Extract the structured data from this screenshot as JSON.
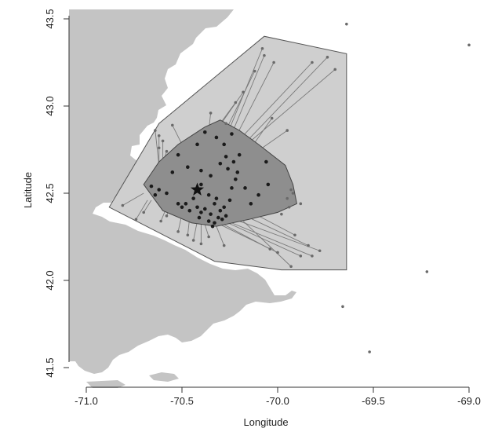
{
  "chart_data": {
    "type": "scatter",
    "title": "",
    "xlabel": "Longitude",
    "ylabel": "Latitude",
    "xlim": [
      -71.1,
      -68.9
    ],
    "ylim": [
      41.45,
      43.58
    ],
    "xticks": [
      -71.0,
      -70.5,
      -70.0,
      -69.5,
      -69.0
    ],
    "yticks": [
      41.5,
      42.0,
      42.5,
      43.0,
      43.5
    ],
    "xtick_labels": [
      "-71.0",
      "-70.5",
      "-70.0",
      "-69.5",
      "-69.0"
    ],
    "ytick_labels": [
      "41.5",
      "42.0",
      "42.5",
      "43.0",
      "43.5"
    ],
    "grid": false,
    "colors": {
      "land": "#c4c4c4",
      "outer_hull": "#cfcfcf",
      "inner_hull": "#8e8e8e",
      "outer_points": "#6a6a6a",
      "inner_points": "#1a1a1a",
      "lines": "#7a7a7a"
    },
    "center": {
      "x": -70.42,
      "y": 42.52,
      "marker": "star-icon"
    },
    "inner_hull": [
      [
        -70.7,
        42.55
      ],
      [
        -70.62,
        42.68
      ],
      [
        -70.52,
        42.78
      ],
      [
        -70.38,
        42.88
      ],
      [
        -70.3,
        42.92
      ],
      [
        -70.2,
        42.86
      ],
      [
        -70.1,
        42.78
      ],
      [
        -69.96,
        42.66
      ],
      [
        -69.92,
        42.55
      ],
      [
        -69.9,
        42.44
      ],
      [
        -70.0,
        42.39
      ],
      [
        -70.15,
        42.35
      ],
      [
        -70.32,
        42.31
      ],
      [
        -70.45,
        42.33
      ],
      [
        -70.6,
        42.4
      ]
    ],
    "outer_hull": [
      [
        -70.88,
        42.42
      ],
      [
        -70.62,
        42.9
      ],
      [
        -70.07,
        43.4
      ],
      [
        -69.64,
        43.3
      ],
      [
        -69.64,
        42.06
      ],
      [
        -69.98,
        42.06
      ],
      [
        -70.33,
        42.11
      ]
    ],
    "inner_points": [
      [
        -70.4,
        42.55
      ],
      [
        -70.36,
        42.49
      ],
      [
        -70.33,
        42.44
      ],
      [
        -70.38,
        42.41
      ],
      [
        -70.42,
        42.42
      ],
      [
        -70.46,
        42.4
      ],
      [
        -70.5,
        42.42
      ],
      [
        -70.52,
        42.44
      ],
      [
        -70.48,
        42.44
      ],
      [
        -70.44,
        42.47
      ],
      [
        -70.35,
        42.38
      ],
      [
        -70.31,
        42.36
      ],
      [
        -70.29,
        42.35
      ],
      [
        -70.33,
        42.33
      ],
      [
        -70.36,
        42.34
      ],
      [
        -70.3,
        42.4
      ],
      [
        -70.28,
        42.42
      ],
      [
        -70.25,
        42.46
      ],
      [
        -70.24,
        42.53
      ],
      [
        -70.22,
        42.58
      ],
      [
        -70.26,
        42.64
      ],
      [
        -70.3,
        42.67
      ],
      [
        -70.27,
        42.71
      ],
      [
        -70.23,
        42.68
      ],
      [
        -70.2,
        42.72
      ],
      [
        -70.28,
        42.78
      ],
      [
        -70.32,
        42.82
      ],
      [
        -70.24,
        42.84
      ],
      [
        -70.38,
        42.85
      ],
      [
        -70.42,
        42.78
      ],
      [
        -70.21,
        42.62
      ],
      [
        -70.17,
        42.53
      ],
      [
        -70.1,
        42.49
      ],
      [
        -70.05,
        42.55
      ],
      [
        -70.14,
        42.44
      ],
      [
        -70.58,
        42.5
      ],
      [
        -70.62,
        42.52
      ],
      [
        -70.66,
        42.54
      ],
      [
        -70.64,
        42.49
      ],
      [
        -70.55,
        42.62
      ],
      [
        -70.47,
        42.65
      ],
      [
        -70.52,
        42.72
      ],
      [
        -70.4,
        42.63
      ],
      [
        -70.35,
        42.6
      ],
      [
        -70.06,
        42.68
      ],
      [
        -70.4,
        42.39
      ],
      [
        -70.34,
        42.31
      ],
      [
        -70.41,
        42.36
      ],
      [
        -70.27,
        42.37
      ],
      [
        -70.32,
        42.47
      ]
    ],
    "outer_points": [
      [
        -70.64,
        42.86
      ],
      [
        -70.62,
        42.83
      ],
      [
        -70.6,
        42.8
      ],
      [
        -70.62,
        42.76
      ],
      [
        -70.58,
        42.74
      ],
      [
        -70.55,
        42.89
      ],
      [
        -70.35,
        42.96
      ],
      [
        -70.22,
        43.02
      ],
      [
        -70.18,
        43.08
      ],
      [
        -70.12,
        43.2
      ],
      [
        -70.07,
        43.29
      ],
      [
        -70.08,
        43.33
      ],
      [
        -70.02,
        43.25
      ],
      [
        -69.82,
        43.25
      ],
      [
        -69.7,
        43.21
      ],
      [
        -69.74,
        43.28
      ],
      [
        -70.03,
        42.93
      ],
      [
        -69.95,
        42.86
      ],
      [
        -70.27,
        42.9
      ],
      [
        -69.93,
        42.52
      ],
      [
        -69.95,
        42.47
      ],
      [
        -69.92,
        42.5
      ],
      [
        -69.94,
        42.42
      ],
      [
        -69.98,
        42.38
      ],
      [
        -69.88,
        42.44
      ],
      [
        -69.91,
        42.26
      ],
      [
        -69.84,
        42.2
      ],
      [
        -69.78,
        42.17
      ],
      [
        -69.82,
        42.14
      ],
      [
        -69.88,
        42.14
      ],
      [
        -70.0,
        42.16
      ],
      [
        -70.04,
        42.18
      ],
      [
        -69.93,
        42.08
      ],
      [
        -70.58,
        42.37
      ],
      [
        -70.61,
        42.34
      ],
      [
        -70.7,
        42.39
      ],
      [
        -70.74,
        42.35
      ],
      [
        -70.81,
        42.43
      ],
      [
        -70.52,
        42.28
      ],
      [
        -70.47,
        42.26
      ],
      [
        -70.44,
        42.23
      ],
      [
        -70.36,
        42.25
      ],
      [
        -70.4,
        42.21
      ],
      [
        -70.28,
        42.2
      ],
      [
        -69.64,
        43.47
      ],
      [
        -69.0,
        43.35
      ],
      [
        -69.22,
        42.05
      ],
      [
        -69.66,
        41.85
      ],
      [
        -69.52,
        41.59
      ]
    ],
    "connections": [
      [
        [
          -70.64,
          42.86
        ],
        [
          -70.62,
          42.66
        ]
      ],
      [
        [
          -70.62,
          42.83
        ],
        [
          -70.62,
          42.66
        ]
      ],
      [
        [
          -70.6,
          42.8
        ],
        [
          -70.6,
          42.66
        ]
      ],
      [
        [
          -70.58,
          42.74
        ],
        [
          -70.62,
          42.6
        ]
      ],
      [
        [
          -70.55,
          42.89
        ],
        [
          -70.5,
          42.78
        ]
      ],
      [
        [
          -70.35,
          42.96
        ],
        [
          -70.36,
          42.86
        ]
      ],
      [
        [
          -70.22,
          43.02
        ],
        [
          -70.3,
          42.9
        ]
      ],
      [
        [
          -70.18,
          43.08
        ],
        [
          -70.32,
          42.86
        ]
      ],
      [
        [
          -70.12,
          43.2
        ],
        [
          -70.28,
          42.84
        ]
      ],
      [
        [
          -70.07,
          43.29
        ],
        [
          -70.24,
          42.84
        ]
      ],
      [
        [
          -70.08,
          43.33
        ],
        [
          -70.27,
          42.82
        ]
      ],
      [
        [
          -70.02,
          43.25
        ],
        [
          -70.22,
          42.82
        ]
      ],
      [
        [
          -69.82,
          43.25
        ],
        [
          -70.18,
          42.83
        ]
      ],
      [
        [
          -69.7,
          43.21
        ],
        [
          -70.14,
          42.8
        ]
      ],
      [
        [
          -69.74,
          43.28
        ],
        [
          -70.16,
          42.8
        ]
      ],
      [
        [
          -70.03,
          42.93
        ],
        [
          -70.12,
          42.79
        ]
      ],
      [
        [
          -69.95,
          42.86
        ],
        [
          -70.08,
          42.76
        ]
      ],
      [
        [
          -70.27,
          42.9
        ],
        [
          -70.28,
          42.84
        ]
      ],
      [
        [
          -69.91,
          42.26
        ],
        [
          -70.1,
          42.37
        ]
      ],
      [
        [
          -69.84,
          42.2
        ],
        [
          -70.15,
          42.36
        ]
      ],
      [
        [
          -69.78,
          42.17
        ],
        [
          -70.2,
          42.34
        ]
      ],
      [
        [
          -69.82,
          42.14
        ],
        [
          -70.24,
          42.33
        ]
      ],
      [
        [
          -69.88,
          42.14
        ],
        [
          -70.26,
          42.33
        ]
      ],
      [
        [
          -70.0,
          42.16
        ],
        [
          -70.3,
          42.32
        ]
      ],
      [
        [
          -70.04,
          42.18
        ],
        [
          -70.28,
          42.32
        ]
      ],
      [
        [
          -69.93,
          42.08
        ],
        [
          -70.18,
          42.34
        ]
      ],
      [
        [
          -70.58,
          42.37
        ],
        [
          -70.56,
          42.43
        ]
      ],
      [
        [
          -70.61,
          42.34
        ],
        [
          -70.58,
          42.42
        ]
      ],
      [
        [
          -70.7,
          42.39
        ],
        [
          -70.66,
          42.46
        ]
      ],
      [
        [
          -70.74,
          42.35
        ],
        [
          -70.68,
          42.46
        ]
      ],
      [
        [
          -70.81,
          42.43
        ],
        [
          -70.7,
          42.5
        ]
      ],
      [
        [
          -70.52,
          42.28
        ],
        [
          -70.5,
          42.38
        ]
      ],
      [
        [
          -70.47,
          42.26
        ],
        [
          -70.46,
          42.36
        ]
      ],
      [
        [
          -70.44,
          42.23
        ],
        [
          -70.42,
          42.34
        ]
      ],
      [
        [
          -70.36,
          42.25
        ],
        [
          -70.38,
          42.32
        ]
      ],
      [
        [
          -70.4,
          42.21
        ],
        [
          -70.4,
          42.33
        ]
      ],
      [
        [
          -70.28,
          42.2
        ],
        [
          -70.32,
          42.31
        ]
      ]
    ]
  }
}
